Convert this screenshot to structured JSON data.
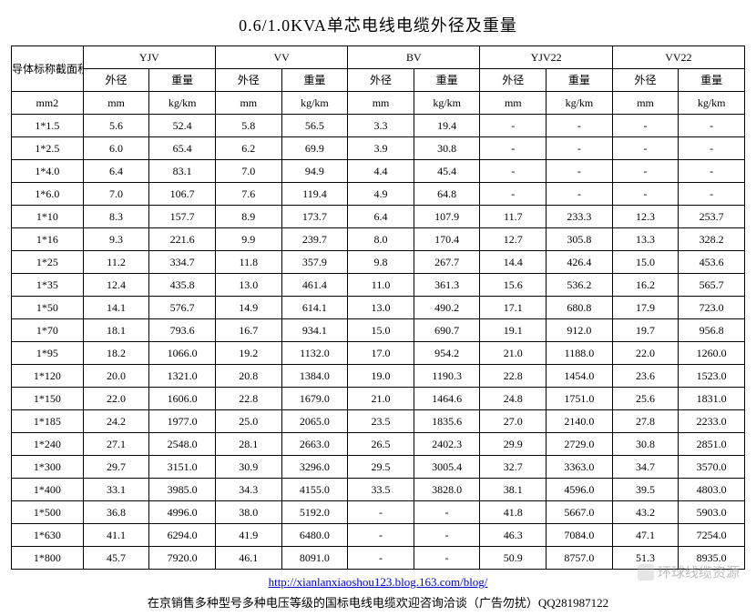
{
  "title": "0.6/1.0KVA单芯电线电缆外径及重量",
  "group_header_label": "导体标称截面积",
  "unit_header": "mm2",
  "sub_headers": {
    "od": "外径",
    "wt": "重量"
  },
  "unit_od": "mm",
  "unit_wt": "kg/km",
  "cable_types": [
    "YJV",
    "VV",
    "BV",
    "YJV22",
    "VV22"
  ],
  "rows": [
    {
      "size": "1*1.5",
      "v": [
        "5.6",
        "52.4",
        "5.8",
        "56.5",
        "3.3",
        "19.4",
        "-",
        "-",
        "-",
        "-"
      ]
    },
    {
      "size": "1*2.5",
      "v": [
        "6.0",
        "65.4",
        "6.2",
        "69.9",
        "3.9",
        "30.8",
        "-",
        "-",
        "-",
        "-"
      ]
    },
    {
      "size": "1*4.0",
      "v": [
        "6.4",
        "83.1",
        "7.0",
        "94.9",
        "4.4",
        "45.4",
        "-",
        "-",
        "-",
        "-"
      ]
    },
    {
      "size": "1*6.0",
      "v": [
        "7.0",
        "106.7",
        "7.6",
        "119.4",
        "4.9",
        "64.8",
        "-",
        "-",
        "-",
        "-"
      ]
    },
    {
      "size": "1*10",
      "v": [
        "8.3",
        "157.7",
        "8.9",
        "173.7",
        "6.4",
        "107.9",
        "11.7",
        "233.3",
        "12.3",
        "253.7"
      ]
    },
    {
      "size": "1*16",
      "v": [
        "9.3",
        "221.6",
        "9.9",
        "239.7",
        "8.0",
        "170.4",
        "12.7",
        "305.8",
        "13.3",
        "328.2"
      ]
    },
    {
      "size": "1*25",
      "v": [
        "11.2",
        "334.7",
        "11.8",
        "357.9",
        "9.8",
        "267.7",
        "14.4",
        "426.4",
        "15.0",
        "453.6"
      ]
    },
    {
      "size": "1*35",
      "v": [
        "12.4",
        "435.8",
        "13.0",
        "461.4",
        "11.0",
        "361.3",
        "15.6",
        "536.2",
        "16.2",
        "565.7"
      ]
    },
    {
      "size": "1*50",
      "v": [
        "14.1",
        "576.7",
        "14.9",
        "614.1",
        "13.0",
        "490.2",
        "17.1",
        "680.8",
        "17.9",
        "723.0"
      ]
    },
    {
      "size": "1*70",
      "v": [
        "18.1",
        "793.6",
        "16.7",
        "934.1",
        "15.0",
        "690.7",
        "19.1",
        "912.0",
        "19.7",
        "956.8"
      ]
    },
    {
      "size": "1*95",
      "v": [
        "18.2",
        "1066.0",
        "19.2",
        "1132.0",
        "17.0",
        "954.2",
        "21.0",
        "1188.0",
        "22.0",
        "1260.0"
      ]
    },
    {
      "size": "1*120",
      "v": [
        "20.0",
        "1321.0",
        "20.8",
        "1384.0",
        "19.0",
        "1190.3",
        "22.8",
        "1454.0",
        "23.6",
        "1523.0"
      ]
    },
    {
      "size": "1*150",
      "v": [
        "22.0",
        "1606.0",
        "22.8",
        "1679.0",
        "21.0",
        "1464.6",
        "24.8",
        "1751.0",
        "25.6",
        "1831.0"
      ]
    },
    {
      "size": "1*185",
      "v": [
        "24.2",
        "1977.0",
        "25.0",
        "2065.0",
        "23.5",
        "1835.6",
        "27.0",
        "2140.0",
        "27.8",
        "2233.0"
      ]
    },
    {
      "size": "1*240",
      "v": [
        "27.1",
        "2548.0",
        "28.1",
        "2663.0",
        "26.5",
        "2402.3",
        "29.9",
        "2729.0",
        "30.8",
        "2851.0"
      ]
    },
    {
      "size": "1*300",
      "v": [
        "29.7",
        "3151.0",
        "30.9",
        "3296.0",
        "29.5",
        "3005.4",
        "32.7",
        "3363.0",
        "34.7",
        "3570.0"
      ]
    },
    {
      "size": "1*400",
      "v": [
        "33.1",
        "3985.0",
        "34.3",
        "4155.0",
        "33.5",
        "3828.0",
        "38.1",
        "4596.0",
        "39.5",
        "4803.0"
      ]
    },
    {
      "size": "1*500",
      "v": [
        "36.8",
        "4996.0",
        "38.0",
        "5192.0",
        "-",
        "-",
        "41.8",
        "5667.0",
        "43.2",
        "5903.0"
      ]
    },
    {
      "size": "1*630",
      "v": [
        "41.1",
        "6294.0",
        "41.9",
        "6480.0",
        "-",
        "-",
        "46.3",
        "7084.0",
        "47.1",
        "7254.0"
      ]
    },
    {
      "size": "1*800",
      "v": [
        "45.7",
        "7920.0",
        "46.1",
        "8091.0",
        "-",
        "-",
        "50.9",
        "8757.0",
        "51.3",
        "8935.0"
      ]
    }
  ],
  "link_text": "http://xianlanxiaoshou123.blog.163.com/blog/",
  "footer_text": "在京销售多种型号多种电压等级的国标电线电缆欢迎咨询洽谈（广告勿扰）QQ281987122",
  "watermark_text": "环球线缆资源",
  "colors": {
    "border": "#000000",
    "background": "#ffffff",
    "link": "#0000cd",
    "watermark": "#9a9a9a"
  },
  "font_sizes": {
    "title": 18,
    "cell": 12,
    "footer": 13
  }
}
